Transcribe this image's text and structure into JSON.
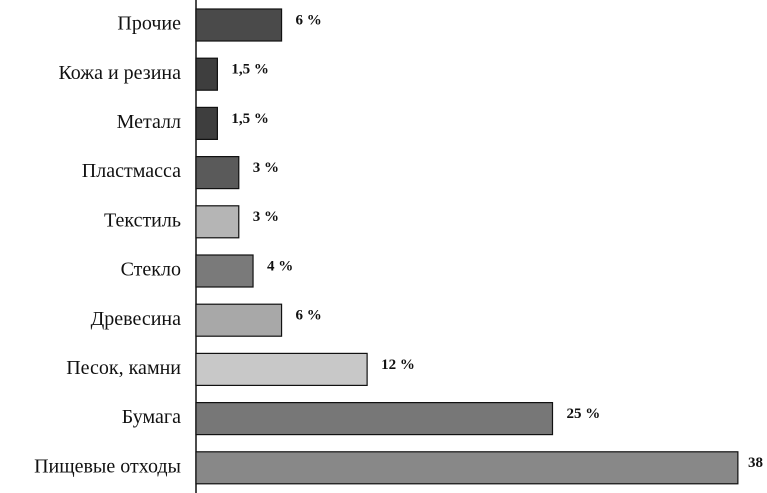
{
  "chart_data": {
    "type": "bar",
    "orientation": "horizontal",
    "categories": [
      "Прочие",
      "Кожа и резина",
      "Металл",
      "Пластмасса",
      "Текстиль",
      "Стекло",
      "Древесина",
      "Песок, камни",
      "Бумага",
      "Пищевые отходы"
    ],
    "values": [
      6,
      1.5,
      1.5,
      3,
      3,
      4,
      6,
      12,
      25,
      38
    ],
    "value_labels": [
      "6 %",
      "1,5 %",
      "1,5 %",
      "3 %",
      "3 %",
      "4 %",
      "6 %",
      "12 %",
      "25 %",
      "38"
    ],
    "colors": [
      "#4a4a4a",
      "#3e3e3e",
      "#3e3e3e",
      "#5a5a5a",
      "#b5b5b5",
      "#7a7a7a",
      "#a8a8a8",
      "#c8c8c8",
      "#777777",
      "#888888"
    ]
  }
}
